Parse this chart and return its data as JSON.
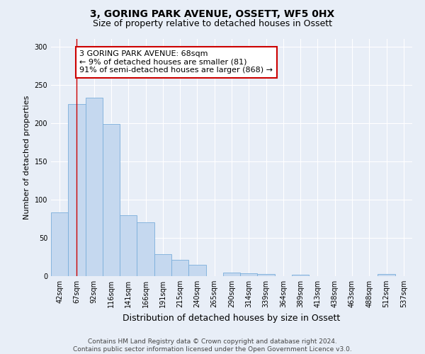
{
  "title": "3, GORING PARK AVENUE, OSSETT, WF5 0HX",
  "subtitle": "Size of property relative to detached houses in Ossett",
  "xlabel": "Distribution of detached houses by size in Ossett",
  "ylabel": "Number of detached properties",
  "bar_color": "#c5d8ef",
  "bar_edge_color": "#7aaedb",
  "categories": [
    "42sqm",
    "67sqm",
    "92sqm",
    "116sqm",
    "141sqm",
    "166sqm",
    "191sqm",
    "215sqm",
    "240sqm",
    "265sqm",
    "290sqm",
    "314sqm",
    "339sqm",
    "364sqm",
    "389sqm",
    "413sqm",
    "438sqm",
    "463sqm",
    "488sqm",
    "512sqm",
    "537sqm"
  ],
  "values": [
    83,
    225,
    233,
    199,
    80,
    70,
    29,
    21,
    15,
    0,
    5,
    4,
    3,
    0,
    2,
    0,
    0,
    0,
    0,
    3,
    0
  ],
  "ylim": [
    0,
    310
  ],
  "yticks": [
    0,
    50,
    100,
    150,
    200,
    250,
    300
  ],
  "property_line_x": 1,
  "annotation_text": "3 GORING PARK AVENUE: 68sqm\n← 9% of detached houses are smaller (81)\n91% of semi-detached houses are larger (868) →",
  "annotation_box_color": "#ffffff",
  "annotation_box_edge_color": "#cc0000",
  "footer_line1": "Contains HM Land Registry data © Crown copyright and database right 2024.",
  "footer_line2": "Contains public sector information licensed under the Open Government Licence v3.0.",
  "background_color": "#e8eef7",
  "grid_color": "#ffffff",
  "title_fontsize": 10,
  "subtitle_fontsize": 9,
  "axis_label_fontsize": 8,
  "tick_fontsize": 7,
  "annotation_fontsize": 8,
  "footer_fontsize": 6.5
}
